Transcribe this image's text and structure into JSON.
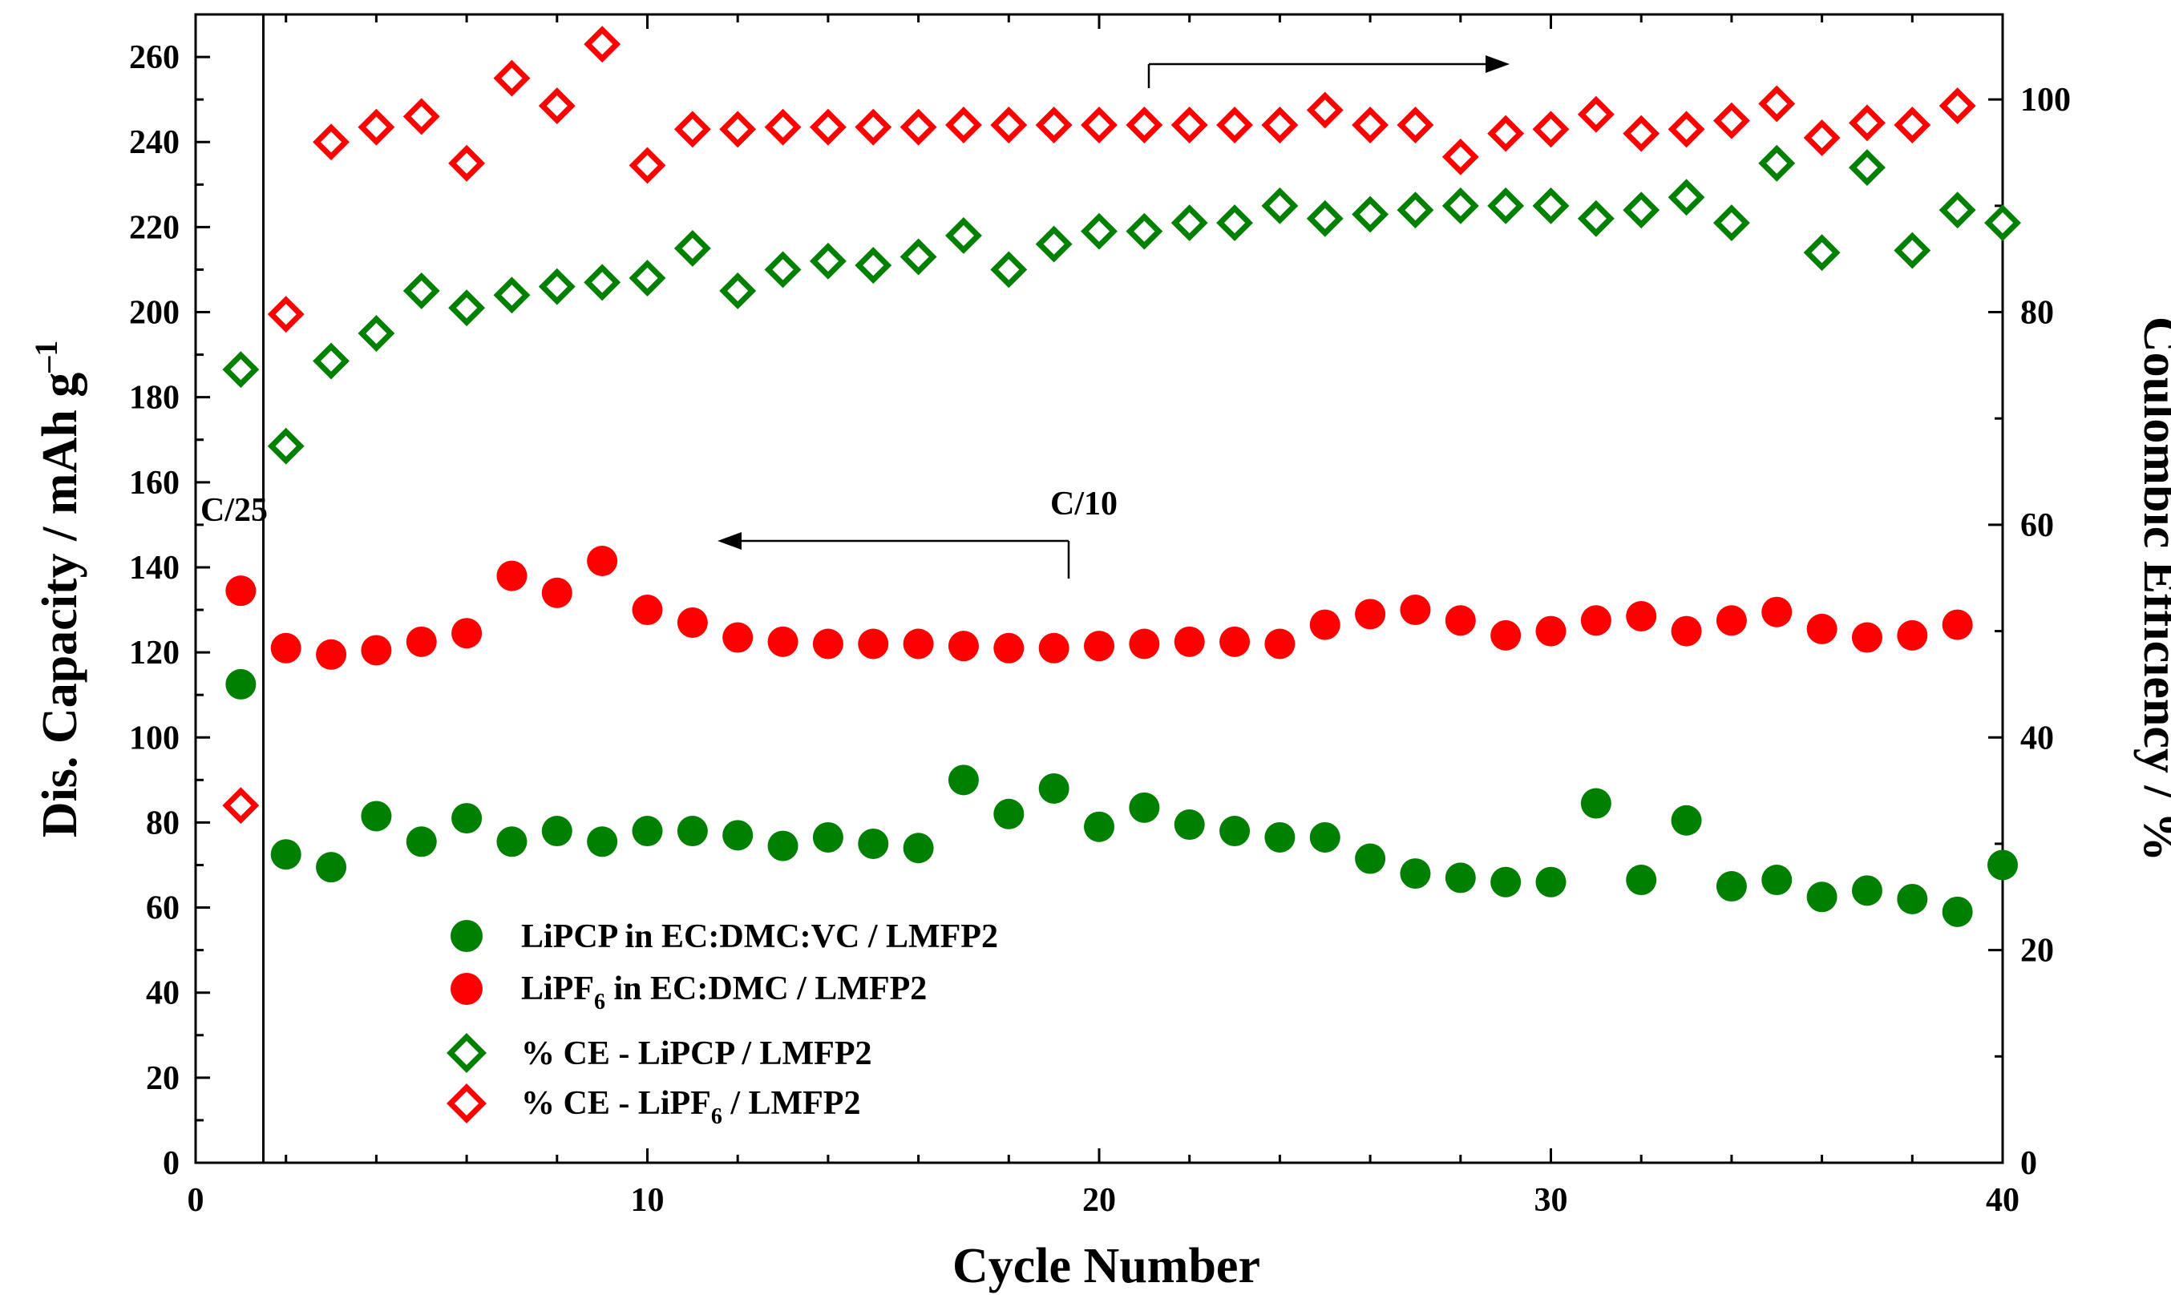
{
  "chart_data": {
    "type": "scatter",
    "title": "",
    "xlabel": "Cycle Number",
    "ylabel_left_main": "Dis. Capacity / mAh g",
    "ylabel_left_sup": "–1",
    "ylabel_right": "Coulombic Efficiency / %",
    "xlim": [
      0,
      40
    ],
    "ylim_left": [
      0,
      270
    ],
    "ylim_right": [
      0,
      108
    ],
    "x_ticks": [
      0,
      10,
      20,
      30,
      40
    ],
    "y_left_ticks": [
      0,
      20,
      40,
      60,
      80,
      100,
      120,
      140,
      160,
      180,
      200,
      220,
      240,
      260
    ],
    "y_right_ticks": [
      0,
      20,
      40,
      60,
      80,
      100
    ],
    "grid": false,
    "legend_position": "bottom-left",
    "series": [
      {
        "name": "LiPCP in EC:DMC:VC / LMFP2",
        "axis": "left",
        "marker": "filled-circle",
        "color": "#008000",
        "x": [
          1,
          2,
          3,
          4,
          5,
          6,
          7,
          8,
          9,
          10,
          11,
          12,
          13,
          14,
          15,
          16,
          17,
          18,
          19,
          20,
          21,
          22,
          23,
          24,
          25,
          26,
          27,
          28,
          29,
          30,
          31,
          32,
          33,
          34,
          35,
          36,
          37,
          38,
          39,
          40
        ],
        "values": [
          112.5,
          72.5,
          69.5,
          81.5,
          75.5,
          81,
          75.5,
          78,
          75.5,
          78,
          78,
          77,
          74.5,
          76.5,
          75,
          74,
          90,
          82,
          88,
          79,
          83.5,
          79.5,
          78,
          76.5,
          76.5,
          71.5,
          68,
          67,
          66,
          66,
          84.5,
          66.5,
          80.5,
          65,
          66.5,
          62.5,
          64,
          62,
          59,
          70
        ]
      },
      {
        "name_main": "LiPF",
        "name_sub": "6",
        "name_rest": " in EC:DMC / LMFP2",
        "axis": "left",
        "marker": "filled-circle",
        "color": "#ff0000",
        "x": [
          1,
          2,
          3,
          4,
          5,
          6,
          7,
          8,
          9,
          10,
          11,
          12,
          13,
          14,
          15,
          16,
          17,
          18,
          19,
          20,
          21,
          22,
          23,
          24,
          25,
          26,
          27,
          28,
          29,
          30,
          31,
          32,
          33,
          34,
          35,
          36,
          37,
          38,
          39
        ],
        "values": [
          134.5,
          121,
          119.5,
          120.5,
          122.5,
          124.5,
          138,
          134,
          141.5,
          130,
          127,
          123.5,
          122.5,
          122,
          122,
          122,
          121.5,
          121,
          121,
          121.5,
          122,
          122.5,
          122.5,
          122,
          126.5,
          129,
          130,
          127.5,
          124,
          125,
          127.5,
          128.5,
          125,
          127.5,
          129.5,
          125.5,
          123.5,
          124,
          126.5
        ]
      },
      {
        "name": "% CE - LiPCP / LMFP2",
        "axis": "right",
        "marker": "open-diamond",
        "color": "#008000",
        "x": [
          1,
          2,
          3,
          4,
          5,
          6,
          7,
          8,
          9,
          10,
          11,
          12,
          13,
          14,
          15,
          16,
          17,
          18,
          19,
          20,
          21,
          22,
          23,
          24,
          25,
          26,
          27,
          28,
          29,
          30,
          31,
          32,
          33,
          34,
          35,
          36,
          37,
          38,
          39,
          40
        ],
        "values": [
          74.6,
          67.4,
          75.4,
          78,
          82,
          80.4,
          81.6,
          82.4,
          82.8,
          83.2,
          86,
          82,
          84,
          84.8,
          84.4,
          85.2,
          87.2,
          84,
          86.4,
          87.6,
          87.6,
          88.4,
          88.4,
          90,
          88.8,
          89.2,
          89.6,
          90,
          90,
          90,
          88.8,
          89.6,
          90.8,
          88.4,
          94,
          85.6,
          93.6,
          85.8,
          89.6,
          88.4
        ]
      },
      {
        "name_main": "% CE - LiPF",
        "name_sub": "6",
        "name_rest": " / LMFP2",
        "axis": "right",
        "marker": "open-diamond",
        "color": "#ff0000",
        "x": [
          1,
          2,
          3,
          4,
          5,
          6,
          7,
          8,
          9,
          10,
          11,
          12,
          13,
          14,
          15,
          16,
          17,
          18,
          19,
          20,
          21,
          22,
          23,
          24,
          25,
          26,
          27,
          28,
          29,
          30,
          31,
          32,
          33,
          34,
          35,
          36,
          37,
          38,
          39
        ],
        "values": [
          33.6,
          79.8,
          96,
          97.4,
          98.4,
          94,
          102,
          99.4,
          105.2,
          93.8,
          97.2,
          97.2,
          97.4,
          97.4,
          97.4,
          97.4,
          97.6,
          97.6,
          97.6,
          97.6,
          97.6,
          97.6,
          97.6,
          97.6,
          99,
          97.6,
          97.6,
          94.6,
          96.8,
          97.2,
          98.6,
          96.8,
          97.2,
          98,
          99.6,
          96.4,
          97.8,
          97.6,
          99.4
        ]
      }
    ],
    "annotations": {
      "c25_label": "C/25",
      "c10_label": "C/10",
      "c25_boundary_x": 1.5
    }
  }
}
